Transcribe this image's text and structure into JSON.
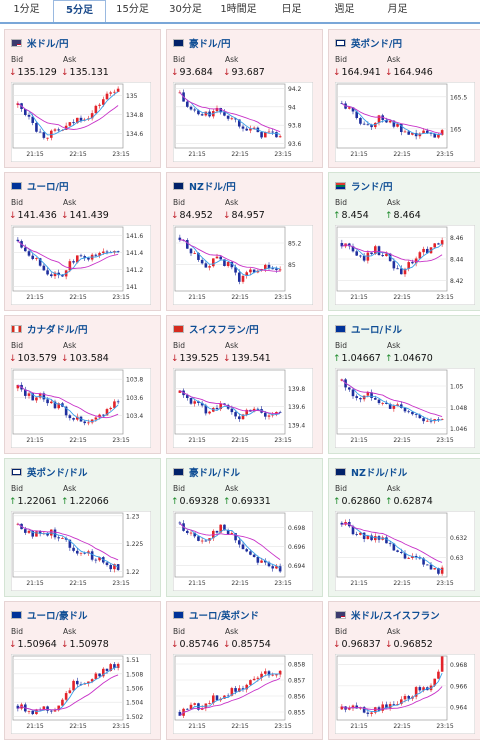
{
  "tabs": [
    {
      "label": "1分足",
      "active": false
    },
    {
      "label": "5分足",
      "active": true
    },
    {
      "label": "15分足",
      "active": false
    },
    {
      "label": "30分足",
      "active": false
    },
    {
      "label": "1時間足",
      "active": false
    },
    {
      "label": "日足",
      "active": false
    },
    {
      "label": "週足",
      "active": false
    },
    {
      "label": "月足",
      "active": false
    }
  ],
  "labels": {
    "bid": "Bid",
    "ask": "Ask"
  },
  "colors": {
    "up_arrow": "#1d8a2b",
    "down_arrow": "#c0202a",
    "pair_name": "#0e4d94",
    "card_down_bg": "#fbeeee",
    "card_up_bg": "#eef5ee",
    "candle_up": "#e2232a",
    "candle_down": "#1f2f9e",
    "ma_short": "#3aa0e8",
    "ma_long": "#c832c8"
  },
  "cards": [
    {
      "name": "米ドル/円",
      "flag": "us",
      "dir": "down",
      "bid": "135.129",
      "ask": "135.131",
      "icon": "down-arrow-icon",
      "chart_data": {
        "type": "candlestick",
        "x_labels": [
          "21:15",
          "22:15",
          "23:15"
        ],
        "y_labels": [
          "135",
          "134.8",
          "134.6"
        ],
        "ylim": [
          134.45,
          135.12
        ],
        "trend": [
          134.9,
          134.82,
          134.78,
          134.62,
          134.58,
          134.6,
          134.62,
          134.66,
          134.7,
          134.76,
          134.78,
          134.8,
          134.9,
          134.98,
          135.04,
          135.1
        ]
      }
    },
    {
      "name": "豪ドル/円",
      "flag": "au",
      "dir": "down",
      "bid": "93.684",
      "ask": "93.687",
      "icon": "down-arrow-icon",
      "chart_data": {
        "type": "candlestick",
        "x_labels": [
          "21:15",
          "22:15",
          "23:15"
        ],
        "y_labels": [
          "94.2",
          "94",
          "93.8",
          "93.6"
        ],
        "ylim": [
          93.55,
          94.25
        ],
        "trend": [
          94.15,
          94.0,
          93.95,
          93.9,
          93.92,
          93.94,
          93.96,
          93.9,
          93.86,
          93.82,
          93.78,
          93.74,
          93.7,
          93.72,
          93.7,
          93.68
        ]
      }
    },
    {
      "name": "英ポンド/円",
      "flag": "gb",
      "dir": "down",
      "bid": "164.941",
      "ask": "164.946",
      "icon": "down-arrow-icon",
      "chart_data": {
        "type": "candlestick",
        "x_labels": [
          "21:15",
          "22:15",
          "23:15"
        ],
        "y_labels": [
          "165.5",
          "165"
        ],
        "ylim": [
          164.7,
          165.7
        ],
        "trend": [
          165.4,
          165.3,
          165.2,
          165.1,
          165.05,
          165.1,
          165.2,
          165.1,
          165.05,
          164.95,
          164.85,
          164.9,
          164.95,
          164.9,
          164.92,
          164.94
        ]
      }
    },
    {
      "name": "ユーロ/円",
      "flag": "eu",
      "dir": "down",
      "bid": "141.436",
      "ask": "141.439",
      "icon": "down-arrow-icon",
      "chart_data": {
        "type": "candlestick",
        "x_labels": [
          "21:15",
          "22:15",
          "23:15"
        ],
        "y_labels": [
          "141.6",
          "141.4",
          "141.2",
          "141"
        ],
        "ylim": [
          140.95,
          141.7
        ],
        "trend": [
          141.55,
          141.45,
          141.38,
          141.3,
          141.2,
          141.15,
          141.1,
          141.18,
          141.28,
          141.35,
          141.3,
          141.35,
          141.4,
          141.38,
          141.42,
          141.44
        ]
      }
    },
    {
      "name": "NZドル/円",
      "flag": "nz",
      "dir": "down",
      "bid": "84.952",
      "ask": "84.957",
      "icon": "down-arrow-icon",
      "chart_data": {
        "type": "candlestick",
        "x_labels": [
          "21:15",
          "22:15",
          "23:15"
        ],
        "y_labels": [
          "85.2",
          "85"
        ],
        "ylim": [
          84.75,
          85.35
        ],
        "trend": [
          85.25,
          85.15,
          85.1,
          85.05,
          85.0,
          85.02,
          85.05,
          85.0,
          84.95,
          84.85,
          84.9,
          84.95,
          84.98,
          84.96,
          84.95,
          84.95
        ]
      }
    },
    {
      "name": "ランド/円",
      "flag": "za",
      "dir": "up",
      "bid": "8.454",
      "ask": "8.464",
      "icon": "up-arrow-icon",
      "chart_data": {
        "type": "candlestick",
        "x_labels": [
          "21:15",
          "22:15",
          "23:15"
        ],
        "y_labels": [
          "8.46",
          "8.44",
          "8.42"
        ],
        "ylim": [
          8.41,
          8.47
        ],
        "trend": [
          8.455,
          8.45,
          8.445,
          8.44,
          8.445,
          8.45,
          8.445,
          8.44,
          8.43,
          8.425,
          8.435,
          8.44,
          8.445,
          8.45,
          8.452,
          8.455
        ]
      }
    },
    {
      "name": "カナダドル/円",
      "flag": "ca",
      "dir": "down",
      "bid": "103.579",
      "ask": "103.584",
      "icon": "down-arrow-icon",
      "chart_data": {
        "type": "candlestick",
        "x_labels": [
          "21:15",
          "22:15",
          "23:15"
        ],
        "y_labels": [
          "103.8",
          "103.6",
          "103.4"
        ],
        "ylim": [
          103.2,
          103.9
        ],
        "trend": [
          103.7,
          103.65,
          103.6,
          103.62,
          103.58,
          103.55,
          103.5,
          103.45,
          103.4,
          103.35,
          103.3,
          103.32,
          103.38,
          103.45,
          103.52,
          103.58
        ]
      }
    },
    {
      "name": "スイスフラン/円",
      "flag": "ch",
      "dir": "down",
      "bid": "139.525",
      "ask": "139.541",
      "icon": "down-arrow-icon",
      "chart_data": {
        "type": "candlestick",
        "x_labels": [
          "21:15",
          "22:15",
          "23:15"
        ],
        "y_labels": [
          "139.8",
          "139.6",
          "139.4"
        ],
        "ylim": [
          139.3,
          140.0
        ],
        "trend": [
          139.75,
          139.7,
          139.65,
          139.6,
          139.55,
          139.6,
          139.62,
          139.58,
          139.5,
          139.48,
          139.55,
          139.6,
          139.55,
          139.5,
          139.52,
          139.53
        ]
      }
    },
    {
      "name": "ユーロ/ドル",
      "flag": "eu",
      "dir": "up",
      "bid": "1.04667",
      "ask": "1.04670",
      "icon": "up-arrow-icon",
      "chart_data": {
        "type": "candlestick",
        "x_labels": [
          "21:15",
          "22:15",
          "23:15"
        ],
        "y_labels": [
          "1.05",
          "1.048",
          "1.046"
        ],
        "ylim": [
          1.0455,
          1.0515
        ],
        "trend": [
          1.0505,
          1.0495,
          1.049,
          1.0488,
          1.0492,
          1.049,
          1.0485,
          1.048,
          1.0482,
          1.0478,
          1.0475,
          1.0472,
          1.047,
          1.0468,
          1.0467,
          1.0466
        ]
      }
    },
    {
      "name": "英ポンド/ドル",
      "flag": "gb",
      "dir": "up",
      "bid": "1.22061",
      "ask": "1.22066",
      "icon": "up-arrow-icon",
      "chart_data": {
        "type": "candlestick",
        "x_labels": [
          "21:15",
          "22:15",
          "23:15"
        ],
        "y_labels": [
          "1.23",
          "1.225",
          "1.22"
        ],
        "ylim": [
          1.219,
          1.2305
        ],
        "trend": [
          1.2285,
          1.2275,
          1.227,
          1.2265,
          1.2268,
          1.227,
          1.2265,
          1.2255,
          1.2245,
          1.2238,
          1.2232,
          1.2228,
          1.2222,
          1.2215,
          1.221,
          1.2206
        ]
      }
    },
    {
      "name": "豪ドル/ドル",
      "flag": "au",
      "dir": "up",
      "bid": "0.69328",
      "ask": "0.69331",
      "icon": "up-arrow-icon",
      "chart_data": {
        "type": "candlestick",
        "x_labels": [
          "21:15",
          "22:15",
          "23:15"
        ],
        "y_labels": [
          "0.698",
          "0.696",
          "0.694"
        ],
        "ylim": [
          0.6928,
          0.6995
        ],
        "trend": [
          0.6985,
          0.6975,
          0.697,
          0.6965,
          0.6968,
          0.6975,
          0.698,
          0.6975,
          0.697,
          0.6962,
          0.6955,
          0.695,
          0.6945,
          0.6942,
          0.6938,
          0.6933
        ]
      }
    },
    {
      "name": "NZドル/ドル",
      "flag": "nz",
      "dir": "up",
      "bid": "0.62860",
      "ask": "0.62874",
      "icon": "up-arrow-icon",
      "chart_data": {
        "type": "candlestick",
        "x_labels": [
          "21:15",
          "22:15",
          "23:15"
        ],
        "y_labels": [
          "0.632",
          "0.63"
        ],
        "ylim": [
          0.628,
          0.6345
        ],
        "trend": [
          0.6335,
          0.633,
          0.6325,
          0.632,
          0.6318,
          0.6322,
          0.632,
          0.6312,
          0.6305,
          0.6302,
          0.63,
          0.6298,
          0.6295,
          0.629,
          0.6288,
          0.6286
        ]
      }
    },
    {
      "name": "ユーロ/豪ドル",
      "flag": "eu",
      "dir": "down",
      "bid": "1.50964",
      "ask": "1.50978",
      "icon": "down-arrow-icon",
      "chart_data": {
        "type": "candlestick",
        "x_labels": [
          "21:15",
          "22:15",
          "23:15"
        ],
        "y_labels": [
          "1.51",
          "1.508",
          "1.506",
          "1.504",
          "1.502"
        ],
        "ylim": [
          1.5015,
          1.5105
        ],
        "trend": [
          1.5035,
          1.5032,
          1.5028,
          1.503,
          1.5032,
          1.503,
          1.5035,
          1.505,
          1.5062,
          1.507,
          1.5068,
          1.5075,
          1.508,
          1.5085,
          1.509,
          1.5096
        ]
      }
    },
    {
      "name": "ユーロ/英ポンド",
      "flag": "eu",
      "dir": "down",
      "bid": "0.85746",
      "ask": "0.85754",
      "icon": "down-arrow-icon",
      "chart_data": {
        "type": "candlestick",
        "x_labels": [
          "21:15",
          "22:15",
          "23:15"
        ],
        "y_labels": [
          "0.858",
          "0.857",
          "0.856",
          "0.855"
        ],
        "ylim": [
          0.8545,
          0.8585
        ],
        "trend": [
          0.855,
          0.8552,
          0.8555,
          0.8553,
          0.8556,
          0.8558,
          0.856,
          0.8562,
          0.8563,
          0.8565,
          0.8568,
          0.857,
          0.8572,
          0.8574,
          0.8575,
          0.8575
        ]
      }
    },
    {
      "name": "米ドル/スイスフラン",
      "flag": "us",
      "dir": "down",
      "bid": "0.96837",
      "ask": "0.96852",
      "icon": "down-arrow-icon",
      "chart_data": {
        "type": "candlestick",
        "x_labels": [
          "21:15",
          "22:15",
          "23:15"
        ],
        "y_labels": [
          "0.968",
          "0.966",
          "0.964"
        ],
        "ylim": [
          0.9628,
          0.9688
        ],
        "trend": [
          0.9638,
          0.9637,
          0.964,
          0.9639,
          0.9636,
          0.9638,
          0.964,
          0.9642,
          0.9641,
          0.9645,
          0.965,
          0.9655,
          0.9658,
          0.966,
          0.9668,
          0.9684
        ]
      }
    }
  ]
}
